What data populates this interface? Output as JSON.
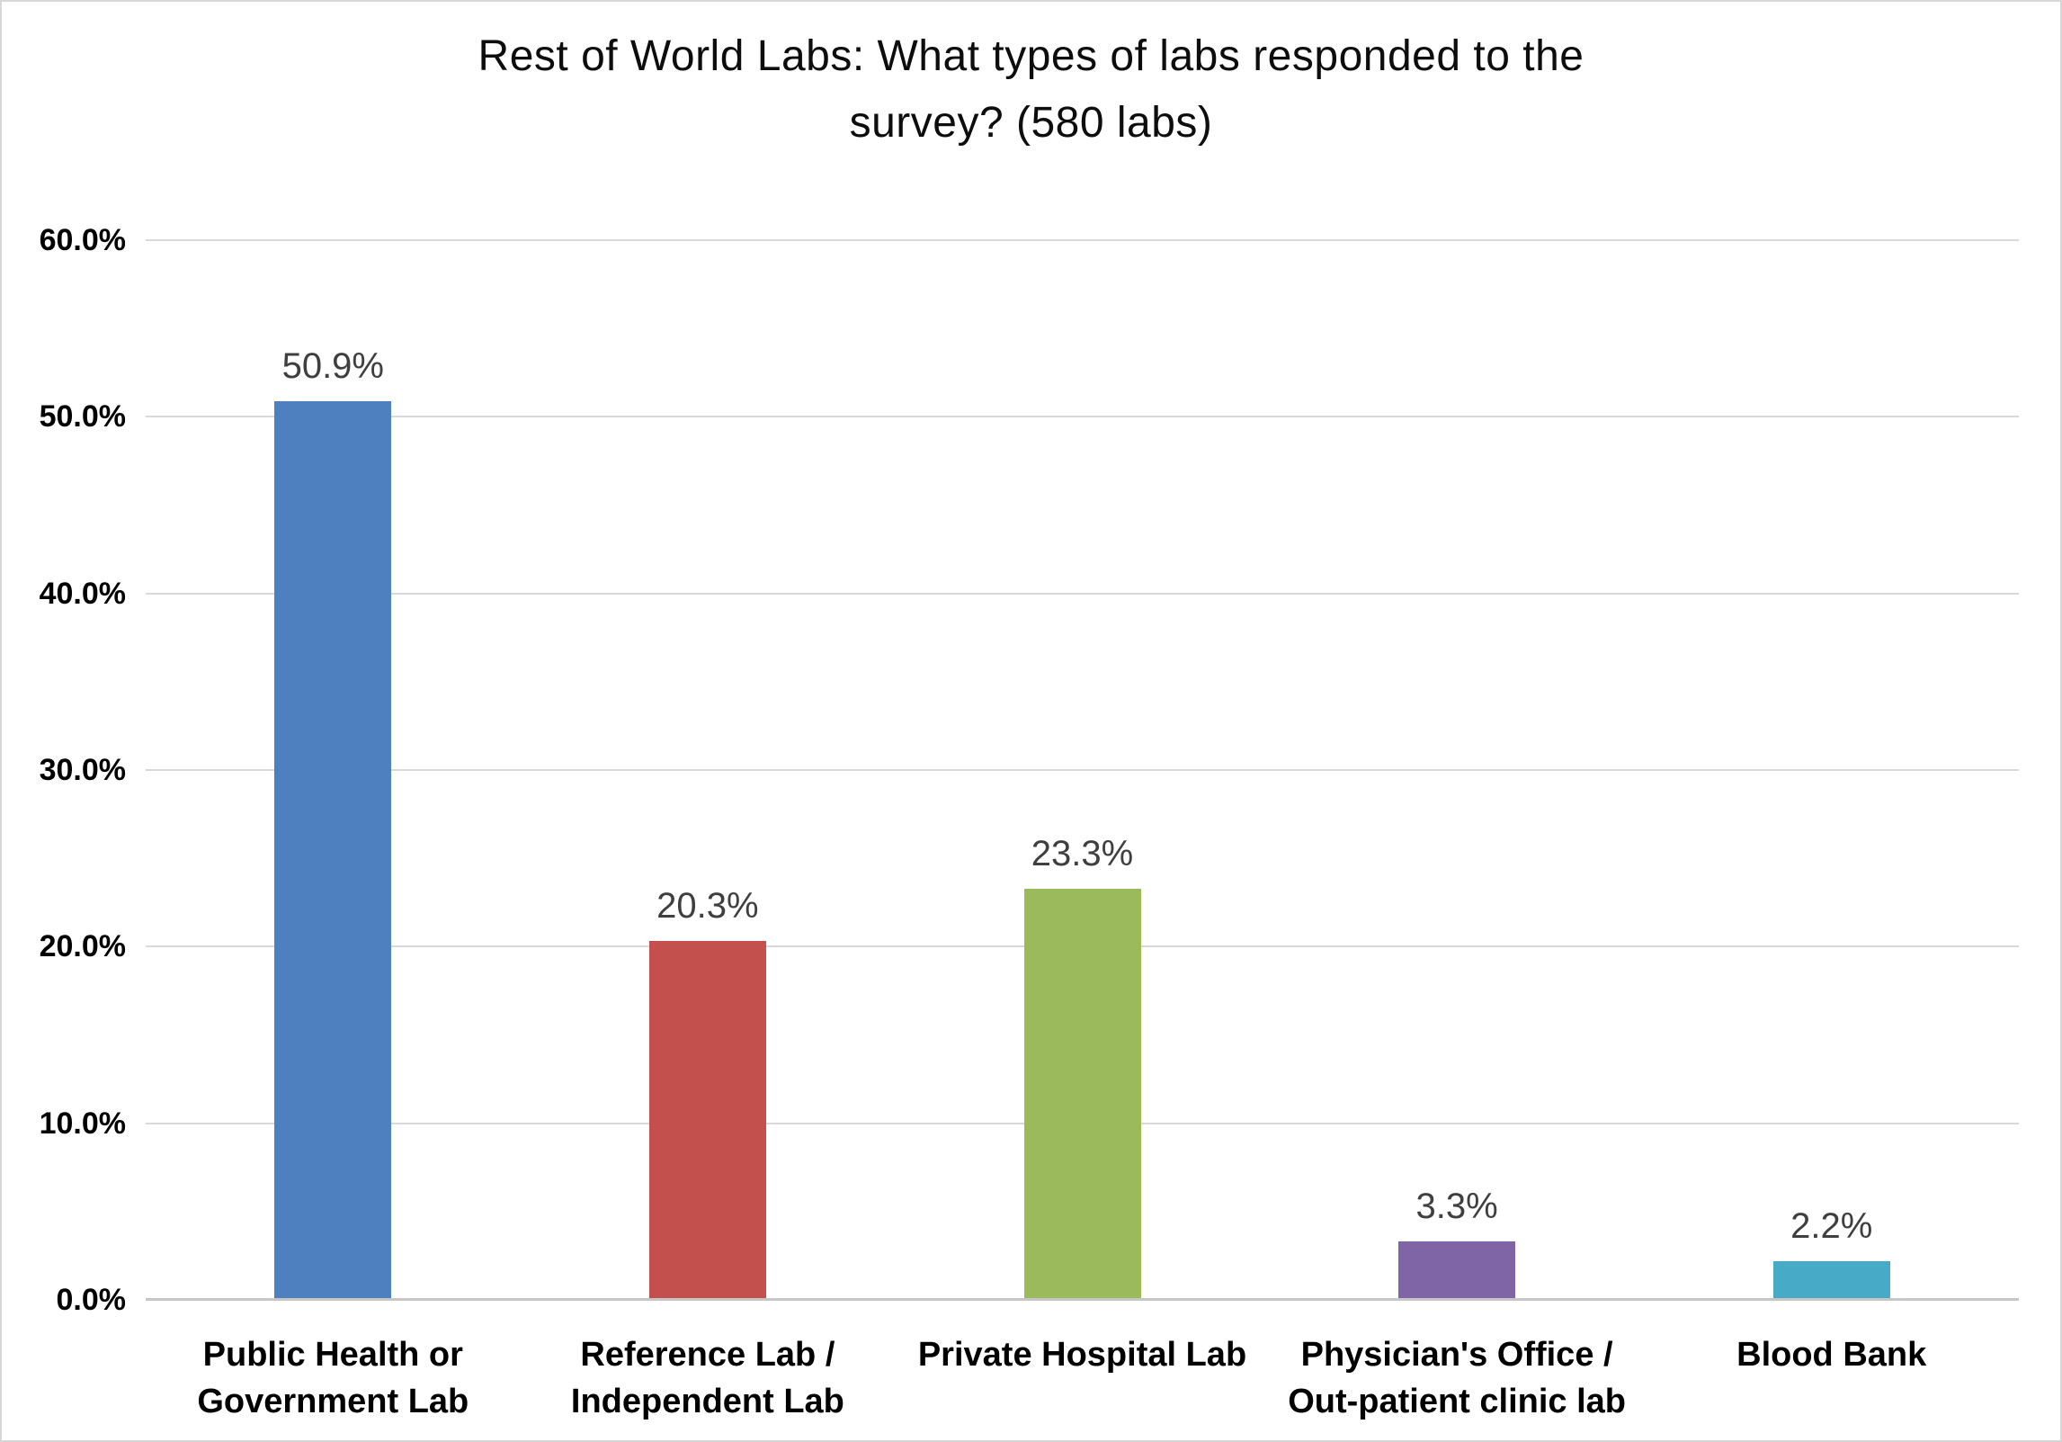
{
  "title_lines": [
    "Rest of World Labs: What types of labs responded to the",
    "survey? (580 labs)"
  ],
  "chart_data": {
    "type": "bar",
    "title": "Rest of World Labs: What types of labs responded to the survey? (580 labs)",
    "categories": [
      "Public Health or Government Lab",
      "Reference Lab / Independent Lab",
      "Private Hospital Lab",
      "Physician's Office / Out-patient clinic lab",
      "Blood Bank"
    ],
    "values": [
      50.9,
      20.3,
      23.3,
      3.3,
      2.2
    ],
    "data_labels": [
      "50.9%",
      "20.3%",
      "23.3%",
      "3.3%",
      "2.2%"
    ],
    "bar_colors": [
      "#4E7FBE",
      "#C4504E",
      "#9BBA5C",
      "#8065A6",
      "#47ABC8"
    ],
    "xlabel": "",
    "ylabel": "",
    "ylim": [
      0,
      60
    ],
    "ytick_step": 10,
    "ytick_labels": [
      "0.0%",
      "10.0%",
      "20.0%",
      "30.0%",
      "40.0%",
      "50.0%",
      "60.0%"
    ],
    "grid": true,
    "legend": false,
    "gridline_color": "#d9d9d9",
    "axis_line_color": "#c6c6c6",
    "data_label_color": "#3f3f3f",
    "text_color": "#000000",
    "background_color": "#ffffff"
  }
}
